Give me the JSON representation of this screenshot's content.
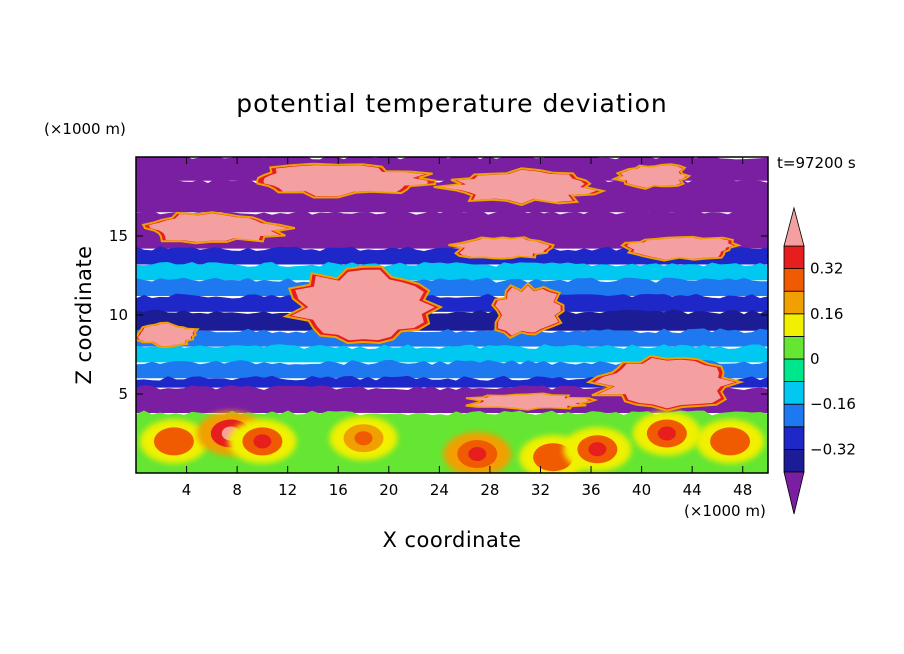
{
  "chart_data": {
    "type": "heatmap",
    "title": "potential temperature deviation",
    "xlabel": "X coordinate",
    "ylabel": "Z coordinate",
    "x_unit": "(×1000 m)",
    "y_unit": "(×1000 m)",
    "time_label": "t=97200 s",
    "xlim": [
      0,
      50
    ],
    "ylim": [
      0,
      20
    ],
    "x_ticks": [
      4,
      8,
      12,
      16,
      20,
      24,
      28,
      32,
      36,
      40,
      44,
      48
    ],
    "y_ticks": [
      5,
      10,
      15
    ],
    "colorbar": {
      "levels": [
        -0.4,
        -0.32,
        -0.24,
        -0.16,
        -0.08,
        0,
        0.08,
        0.16,
        0.24,
        0.32,
        0.4
      ],
      "colors": [
        "#7a1fa2",
        "#1c1c96",
        "#1e28c8",
        "#1e78f0",
        "#00c8f0",
        "#00e68c",
        "#64e632",
        "#f0f000",
        "#f0a000",
        "#f05a00",
        "#e61e1e",
        "#f5a0a0"
      ],
      "labels": [
        "0.32",
        "0.16",
        "0",
        "−0.16",
        "−0.32"
      ],
      "label_values": [
        0.32,
        0.16,
        0,
        -0.16,
        -0.32
      ]
    },
    "field_bands": [
      {
        "z_range": [
          18.5,
          20
        ],
        "value": -0.45
      },
      {
        "z_range": [
          16.5,
          18.5
        ],
        "value": -0.45
      },
      {
        "z_range": [
          14.2,
          16.5
        ],
        "value": -0.45
      },
      {
        "z_range": [
          13.2,
          14.2
        ],
        "value": -0.28
      },
      {
        "z_range": [
          12.2,
          13.2
        ],
        "value": -0.12
      },
      {
        "z_range": [
          11.2,
          12.2
        ],
        "value": -0.2
      },
      {
        "z_range": [
          10.2,
          11.2
        ],
        "value": -0.28
      },
      {
        "z_range": [
          9.0,
          10.2
        ],
        "value": -0.35
      },
      {
        "z_range": [
          8.0,
          9.0
        ],
        "value": -0.2
      },
      {
        "z_range": [
          7.0,
          8.0
        ],
        "value": -0.1
      },
      {
        "z_range": [
          6.0,
          7.0
        ],
        "value": -0.18
      },
      {
        "z_range": [
          5.4,
          6.0
        ],
        "value": -0.32
      },
      {
        "z_range": [
          3.8,
          5.4
        ],
        "value": -0.45
      },
      {
        "z_range": [
          0,
          3.8
        ],
        "value": 0.05
      }
    ],
    "positive_regions": [
      {
        "x_range": [
          8,
          24
        ],
        "z_range": [
          17.5,
          19.5
        ],
        "value": 0.45
      },
      {
        "x_range": [
          24,
          37
        ],
        "z_range": [
          17.0,
          19.2
        ],
        "value": 0.45
      },
      {
        "x_range": [
          38,
          44
        ],
        "z_range": [
          18.0,
          19.6
        ],
        "value": 0.45
      },
      {
        "x_range": [
          0,
          12
        ],
        "z_range": [
          14.5,
          16.5
        ],
        "value": 0.45
      },
      {
        "x_range": [
          25,
          33
        ],
        "z_range": [
          13.5,
          15.0
        ],
        "value": 0.45
      },
      {
        "x_range": [
          38,
          48
        ],
        "z_range": [
          13.5,
          15.0
        ],
        "value": 0.45
      },
      {
        "x_range": [
          12,
          24
        ],
        "z_range": [
          8.0,
          13.0
        ],
        "value": 0.45
      },
      {
        "x_range": [
          28,
          34
        ],
        "z_range": [
          8.5,
          12.0
        ],
        "value": 0.45
      },
      {
        "x_range": [
          36,
          48
        ],
        "z_range": [
          4.0,
          7.5
        ],
        "value": 0.45
      },
      {
        "x_range": [
          26,
          36
        ],
        "z_range": [
          4.0,
          5.0
        ],
        "value": 0.45
      },
      {
        "x_range": [
          0,
          5
        ],
        "z_range": [
          8.0,
          9.5
        ],
        "value": 0.45
      }
    ],
    "warm_blobs": [
      {
        "x": 3,
        "z": 2.0,
        "value": 0.3
      },
      {
        "x": 7.5,
        "z": 2.5,
        "value": 0.4
      },
      {
        "x": 10,
        "z": 2.0,
        "value": 0.35
      },
      {
        "x": 18,
        "z": 2.2,
        "value": 0.25
      },
      {
        "x": 27,
        "z": 1.2,
        "value": 0.38
      },
      {
        "x": 33,
        "z": 1.0,
        "value": 0.3
      },
      {
        "x": 36.5,
        "z": 1.5,
        "value": 0.32
      },
      {
        "x": 42,
        "z": 2.5,
        "value": 0.35
      },
      {
        "x": 47,
        "z": 2.0,
        "value": 0.3
      }
    ]
  }
}
